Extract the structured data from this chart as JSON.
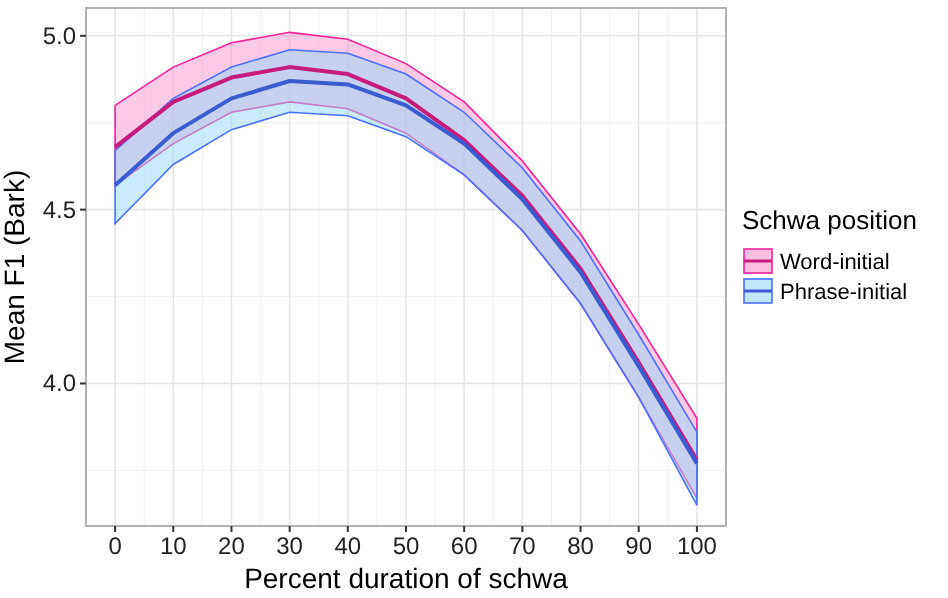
{
  "chart_data": {
    "type": "line",
    "xlabel": "Percent duration of schwa",
    "ylabel": "Mean F1 (Bark)",
    "legend_title": "Schwa position",
    "legend": "right",
    "grid": true,
    "marker": "none",
    "line_style": "solid",
    "x": [
      0,
      10,
      20,
      30,
      40,
      50,
      60,
      70,
      80,
      90,
      100
    ],
    "xlim": [
      -5,
      105
    ],
    "xticks": [
      0,
      10,
      20,
      30,
      40,
      50,
      60,
      70,
      80,
      90,
      100
    ],
    "ylim": [
      3.59,
      5.08
    ],
    "yticks": [
      {
        "value": 4,
        "label": "4.0"
      },
      {
        "value": 4.5,
        "label": "4.5"
      },
      {
        "value": 5,
        "label": "5.0"
      }
    ],
    "series": [
      {
        "name": "Word-initial",
        "color": "#c51b7d",
        "values": [
          4.68,
          4.81,
          4.88,
          4.91,
          4.89,
          4.82,
          4.7,
          4.54,
          4.33,
          4.06,
          3.78
        ],
        "lower": [
          4.57,
          4.69,
          4.78,
          4.81,
          4.79,
          4.72,
          4.6,
          4.44,
          4.23,
          3.96,
          3.67
        ],
        "upper": [
          4.8,
          4.91,
          4.98,
          5.01,
          4.99,
          4.92,
          4.81,
          4.64,
          4.43,
          4.17,
          3.9
        ]
      },
      {
        "name": "Phrase-initial",
        "color": "#3b5bd0",
        "values": [
          4.57,
          4.72,
          4.82,
          4.87,
          4.86,
          4.8,
          4.69,
          4.53,
          4.32,
          4.05,
          3.77
        ],
        "lower": [
          4.46,
          4.63,
          4.73,
          4.78,
          4.77,
          4.71,
          4.6,
          4.44,
          4.23,
          3.96,
          3.65
        ],
        "upper": [
          4.67,
          4.82,
          4.91,
          4.96,
          4.95,
          4.89,
          4.78,
          4.62,
          4.41,
          4.14,
          3.86
        ]
      }
    ]
  }
}
